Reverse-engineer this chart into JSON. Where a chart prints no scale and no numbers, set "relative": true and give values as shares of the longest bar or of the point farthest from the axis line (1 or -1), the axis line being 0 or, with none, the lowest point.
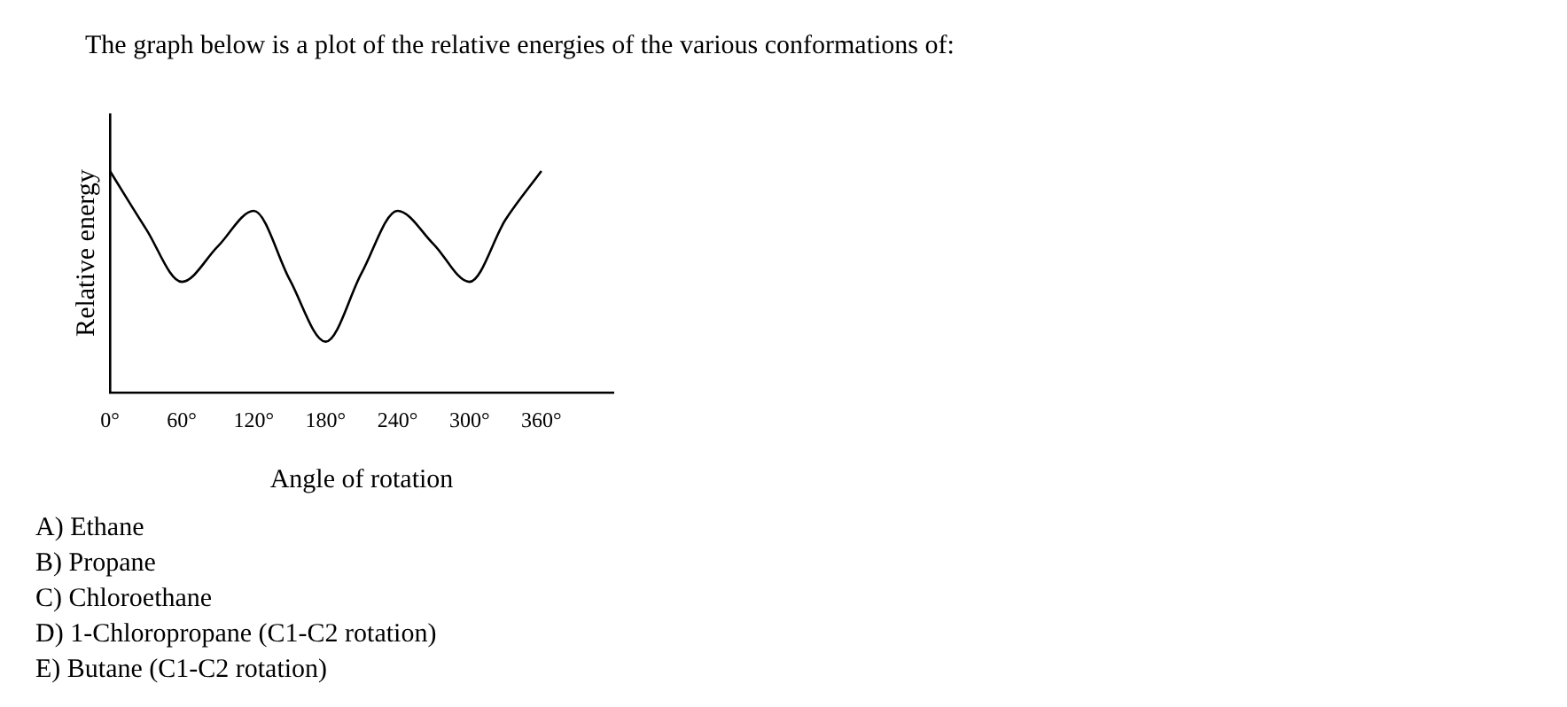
{
  "chart_data": {
    "type": "line",
    "title": "The graph below is a plot of the relative energies of the various conformations of:",
    "xlabel": "Angle of rotation",
    "ylabel": "Relative energy",
    "relative": true,
    "grid": false,
    "marker": "none",
    "color": "#000000",
    "x": [
      0,
      30,
      60,
      90,
      120,
      150,
      180,
      210,
      240,
      270,
      300,
      330,
      360
    ],
    "values": [
      1,
      0.74,
      0.5,
      0.66,
      0.82,
      0.51,
      0.23,
      0.54,
      0.82,
      0.67,
      0.5,
      0.78,
      1
    ],
    "xlim": [
      0,
      420
    ],
    "xticks": [
      {
        "value": 0,
        "label": "0°"
      },
      {
        "value": 60,
        "label": "60°"
      },
      {
        "value": 120,
        "label": "120°"
      },
      {
        "value": 180,
        "label": "180°"
      },
      {
        "value": 240,
        "label": "240°"
      },
      {
        "value": 300,
        "label": "300°"
      },
      {
        "value": 360,
        "label": "360°"
      }
    ],
    "annotations": [
      "A) Ethane",
      "B) Propane",
      "C) Chloroethane",
      "D) 1-Chloropropane (C1-C2 rotation)",
      "E) Butane (C1-C2 rotation)"
    ]
  }
}
